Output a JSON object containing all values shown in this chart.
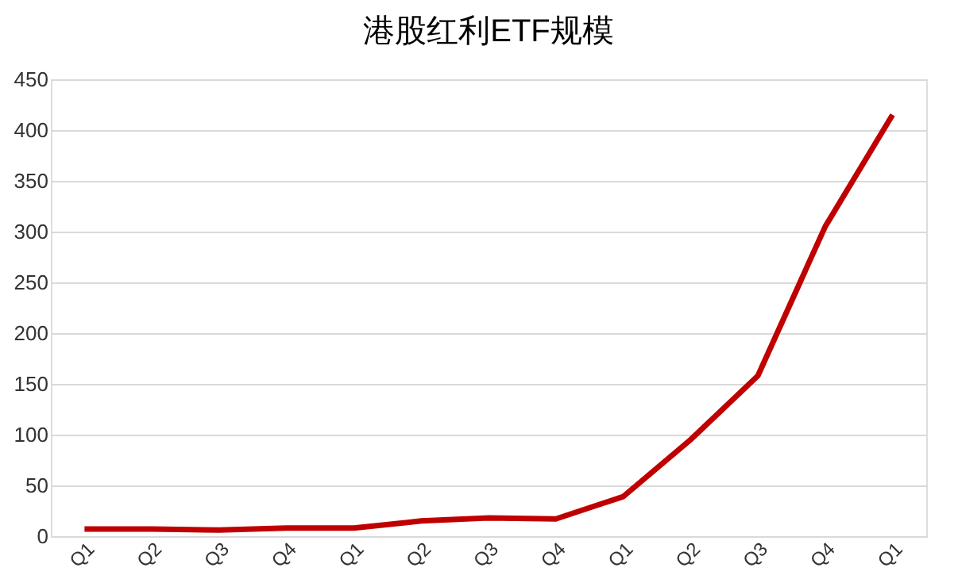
{
  "chart_data": {
    "type": "line",
    "title": "港股红利ETF规模",
    "categories": [
      "Q1",
      "Q2",
      "Q3",
      "Q4",
      "Q1",
      "Q2",
      "Q3",
      "Q4",
      "Q1",
      "Q2",
      "Q3",
      "Q4",
      "Q1"
    ],
    "series": [
      {
        "color": "#c00000",
        "values": [
          7,
          7,
          6,
          8,
          8,
          15,
          18,
          17,
          39,
          95,
          158,
          305,
          415
        ]
      }
    ],
    "ylim": [
      0,
      450
    ],
    "yticks": [
      0,
      50,
      100,
      150,
      200,
      250,
      300,
      350,
      400,
      450
    ],
    "grid": "y",
    "marker": "none",
    "line_style": "solid"
  }
}
